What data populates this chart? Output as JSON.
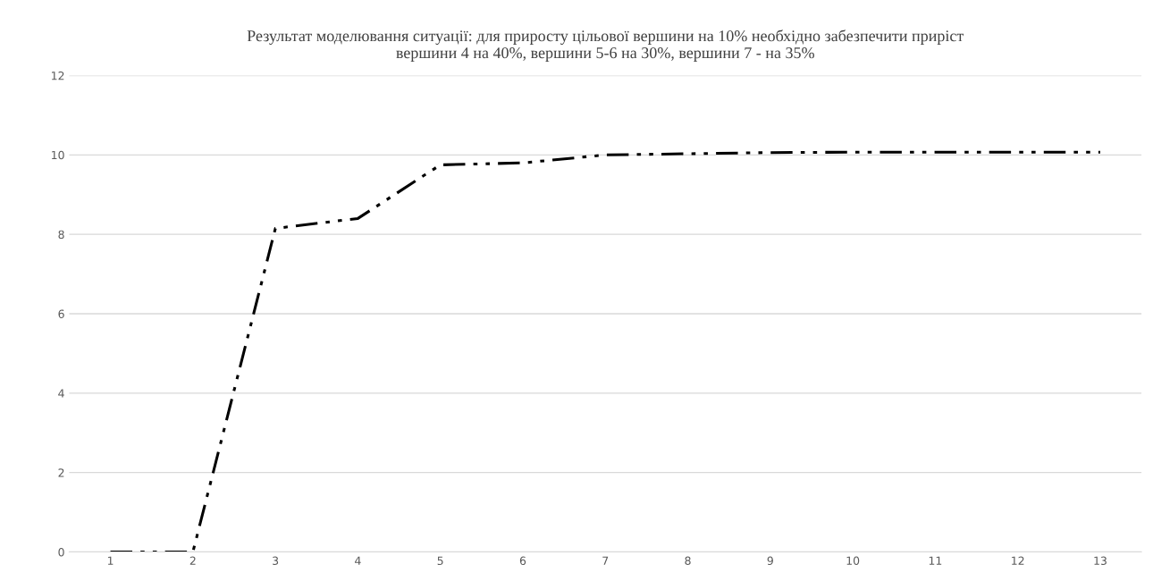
{
  "chart_data": {
    "type": "line",
    "title": "Результат моделювання ситуації: для приросту цільової вершини на 10% необхідно забезпечити приріст\nвершини 4 на 40%, вершини 5-6 на 30%, вершини 7 - на 35%",
    "categories": [
      "1",
      "2",
      "3",
      "4",
      "5",
      "6",
      "7",
      "8",
      "9",
      "10",
      "11",
      "12",
      "13"
    ],
    "series": [
      {
        "color": "#000000",
        "values": [
          0,
          0,
          8.15,
          8.4,
          9.75,
          9.8,
          10.0,
          10.03,
          10.06,
          10.07,
          10.07,
          10.07,
          10.07
        ]
      }
    ],
    "ylim": [
      0,
      12
    ],
    "yticks": [
      0,
      2,
      4,
      6,
      8,
      10,
      12
    ],
    "grid": "y",
    "line_style": "dashed",
    "marker": "none"
  }
}
